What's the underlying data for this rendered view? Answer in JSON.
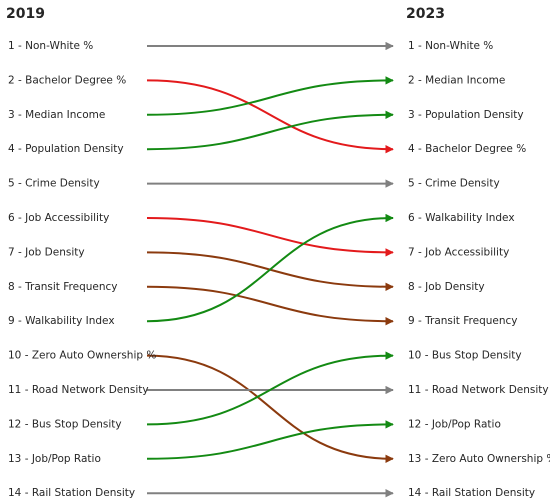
{
  "chart_data": {
    "type": "bump",
    "left_title": "2019",
    "right_title": "2023",
    "left_labels": [
      "1 - Non-White %",
      "2 - Bachelor Degree %",
      "3 - Median Income",
      "4 - Population Density",
      "5 - Crime Density",
      "6 - Job Accessibility",
      "7 - Job Density",
      "8 - Transit Frequency",
      "9 - Walkability Index",
      "10 - Zero Auto Ownership %",
      "11 - Road Network Density",
      "12 - Bus Stop Density",
      "13 - Job/Pop Ratio",
      "14 - Rail Station Density"
    ],
    "right_labels": [
      "1 - Non-White %",
      "2 - Median Income",
      "3 - Population Density",
      "4 - Bachelor Degree %",
      "5 - Crime Density",
      "6 - Walkability Index",
      "7 - Job Accessibility",
      "8 - Job Density",
      "9 - Transit Frequency",
      "10 - Bus Stop Density",
      "11 - Road Network Density",
      "12 - Job/Pop Ratio",
      "13 - Zero Auto Ownership %",
      "14 - Rail Station Density"
    ],
    "series": [
      {
        "name": "Non-White %",
        "rank_2019": 1,
        "rank_2023": 1,
        "color": "#808080"
      },
      {
        "name": "Bachelor Degree %",
        "rank_2019": 2,
        "rank_2023": 4,
        "color": "#e31a1c"
      },
      {
        "name": "Median Income",
        "rank_2019": 3,
        "rank_2023": 2,
        "color": "#138a13"
      },
      {
        "name": "Population Density",
        "rank_2019": 4,
        "rank_2023": 3,
        "color": "#138a13"
      },
      {
        "name": "Crime Density",
        "rank_2019": 5,
        "rank_2023": 5,
        "color": "#808080"
      },
      {
        "name": "Job Accessibility",
        "rank_2019": 6,
        "rank_2023": 7,
        "color": "#e31a1c"
      },
      {
        "name": "Job Density",
        "rank_2019": 7,
        "rank_2023": 8,
        "color": "#8b3a0e"
      },
      {
        "name": "Transit Frequency",
        "rank_2019": 8,
        "rank_2023": 9,
        "color": "#8b3a0e"
      },
      {
        "name": "Walkability Index",
        "rank_2019": 9,
        "rank_2023": 6,
        "color": "#138a13"
      },
      {
        "name": "Zero Auto Ownership %",
        "rank_2019": 10,
        "rank_2023": 13,
        "color": "#8b3a0e"
      },
      {
        "name": "Road Network Density",
        "rank_2019": 11,
        "rank_2023": 11,
        "color": "#808080"
      },
      {
        "name": "Bus Stop Density",
        "rank_2019": 12,
        "rank_2023": 10,
        "color": "#138a13"
      },
      {
        "name": "Job/Pop Ratio",
        "rank_2019": 13,
        "rank_2023": 12,
        "color": "#138a13"
      },
      {
        "name": "Rail Station Density",
        "rank_2019": 14,
        "rank_2023": 14,
        "color": "#808080"
      }
    ]
  }
}
